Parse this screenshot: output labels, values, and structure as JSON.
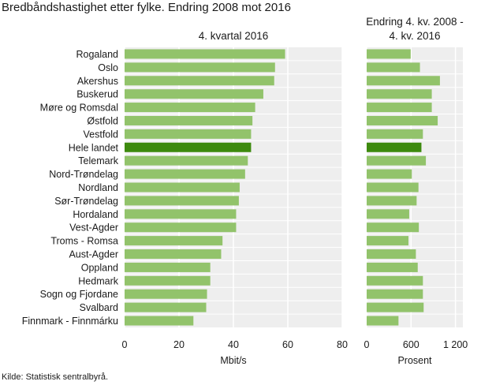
{
  "title": "Bredbåndshastighet etter fylke. Endring 2008 mot 2016",
  "source": "Kilde: Statistisk sentralbyrå.",
  "colors": {
    "bar": "#92c36b",
    "highlight": "#3d8a0e",
    "plot_bg": "#eeeeee",
    "grid": "#ffffff"
  },
  "chart_data": [
    {
      "type": "bar",
      "orientation": "horizontal",
      "title": "4. kvartal 2016",
      "xlabel": "Mbit/s",
      "xlim": [
        0,
        80
      ],
      "xticks": [
        "0",
        "20",
        "40",
        "60",
        "80"
      ],
      "highlight_category": "Hele landet",
      "categories": [
        "Rogaland",
        "Oslo",
        "Akershus",
        "Buskerud",
        "Møre og Romsdal",
        "Østfold",
        "Vestfold",
        "Hele landet",
        "Telemark",
        "Nord-Trøndelag",
        "Nordland",
        "Sør-Trøndelag",
        "Hordaland",
        "Vest-Agder",
        "Troms - Romsa",
        "Aust-Agder",
        "Oppland",
        "Hedmark",
        "Sogn og Fjordane",
        "Svalbard",
        "Finnmark - Finnmárku"
      ],
      "values": [
        59,
        55.3,
        55,
        51,
        48,
        47,
        46.5,
        46.5,
        45.3,
        44.3,
        42.3,
        42,
        41,
        41,
        36,
        35.5,
        31.5,
        31.5,
        30.3,
        30,
        25.3
      ]
    },
    {
      "type": "bar",
      "orientation": "horizontal",
      "title": "Endring 4. kv. 2008 - 4. kv. 2016",
      "title_lines": [
        "Endring 4. kv. 2008 -",
        "4. kv. 2016"
      ],
      "xlabel": "Prosent",
      "xlim": [
        0,
        1300
      ],
      "xticks": [
        {
          "value": 0,
          "label": "0"
        },
        {
          "value": 600,
          "label": "600"
        },
        {
          "value": 1200,
          "label": "1 200"
        }
      ],
      "highlight_category": "Hele landet",
      "categories": [
        "Rogaland",
        "Oslo",
        "Akershus",
        "Buskerud",
        "Møre og Romsdal",
        "Østfold",
        "Vestfold",
        "Hele landet",
        "Telemark",
        "Nord-Trøndelag",
        "Nordland",
        "Sør-Trøndelag",
        "Hordaland",
        "Vest-Agder",
        "Troms - Romsa",
        "Aust-Agder",
        "Oppland",
        "Hedmark",
        "Sogn og Fjordane",
        "Svalbard",
        "Finnmark - Finnmárku"
      ],
      "values": [
        595,
        720,
        990,
        880,
        880,
        960,
        760,
        740,
        800,
        610,
        700,
        675,
        575,
        705,
        565,
        665,
        690,
        760,
        760,
        770,
        430
      ]
    }
  ]
}
